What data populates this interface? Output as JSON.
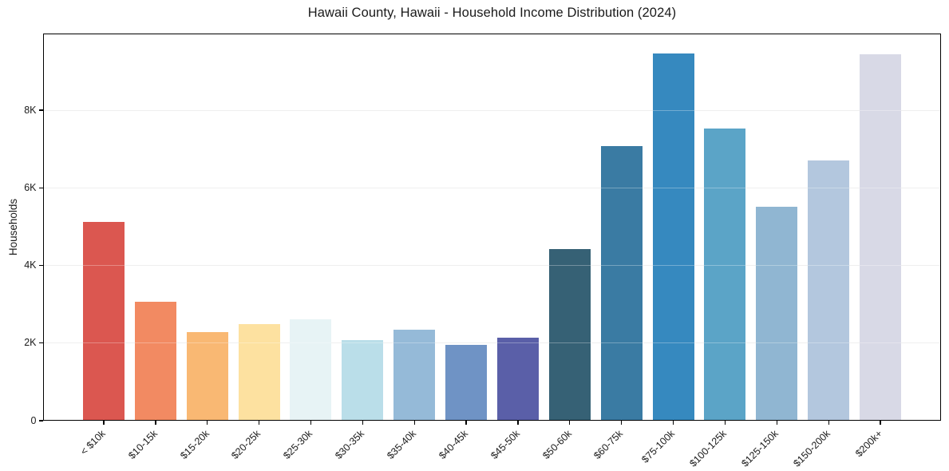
{
  "chart_data": {
    "type": "bar",
    "title": "Hawaii County, Hawaii - Household Income Distribution (2024)",
    "xlabel": "",
    "ylabel": "Households",
    "categories": [
      "< $10k",
      "$10-15k",
      "$15-20k",
      "$20-25k",
      "$25-30k",
      "$30-35k",
      "$35-40k",
      "$40-45k",
      "$45-50k",
      "$50-60k",
      "$60-75k",
      "$75-100k",
      "$100-125k",
      "$125-150k",
      "$150-200k",
      "$200k+"
    ],
    "values": [
      5110,
      3050,
      2270,
      2460,
      2600,
      2050,
      2330,
      1940,
      2110,
      4410,
      7060,
      9450,
      7500,
      5500,
      6690,
      9430
    ],
    "bar_colors": [
      "#db5750",
      "#f28a62",
      "#f9b873",
      "#fde1a0",
      "#e7f3f5",
      "#badee9",
      "#95bad8",
      "#6f93c5",
      "#5a5fa8",
      "#366175",
      "#3a7ba3",
      "#3689bf",
      "#5ba4c7",
      "#90b6d2",
      "#b3c7de",
      "#d8d9e6"
    ],
    "ylim": [
      0,
      9975
    ],
    "yticks": [
      {
        "value": 0,
        "label": "0"
      },
      {
        "value": 2000,
        "label": "2K"
      },
      {
        "value": 4000,
        "label": "4K"
      },
      {
        "value": 6000,
        "label": "6K"
      },
      {
        "value": 8000,
        "label": "8K"
      }
    ],
    "grid": "horizontal",
    "legend": "none",
    "x_tick_rotation": 45
  },
  "colors": {
    "background": "#ffffff",
    "grid": "#e8e8e8",
    "spine": "#000000",
    "text": "#1a1a1a"
  }
}
